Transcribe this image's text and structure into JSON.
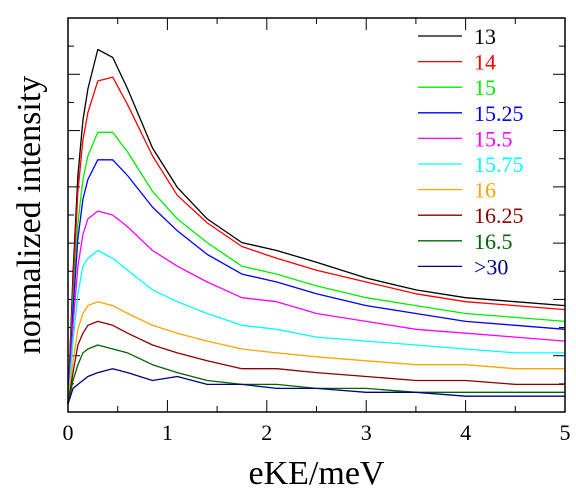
{
  "chart_data": {
    "type": "line",
    "xlabel": "eKE/meV",
    "ylabel": "normalized intensity",
    "xlim": [
      0,
      5
    ],
    "ylim": [
      0,
      100
    ],
    "x_ticks": [
      0,
      1,
      2,
      3,
      4,
      5
    ],
    "y_ticks_labeled": false,
    "grid": false,
    "legend_position": "top-right",
    "series": [
      {
        "name": "13",
        "color": "#000000",
        "x": [
          0.0,
          0.05,
          0.1,
          0.15,
          0.2,
          0.3,
          0.45,
          0.6,
          0.85,
          1.1,
          1.4,
          1.75,
          2.1,
          2.5,
          3.0,
          3.5,
          4.0,
          4.5,
          5.0
        ],
        "y": [
          2,
          35,
          60,
          74,
          82,
          92,
          90,
          82,
          67,
          57,
          49,
          43,
          41,
          38,
          34,
          31,
          29,
          28,
          27
        ]
      },
      {
        "name": "14",
        "color": "#ff0000",
        "x": [
          0.0,
          0.05,
          0.1,
          0.15,
          0.2,
          0.3,
          0.45,
          0.6,
          0.85,
          1.1,
          1.4,
          1.75,
          2.1,
          2.5,
          3.0,
          3.5,
          4.0,
          4.5,
          5.0
        ],
        "y": [
          2,
          32,
          56,
          69,
          76,
          84,
          85,
          78,
          65,
          55,
          48,
          42,
          39,
          36,
          33,
          30,
          28,
          27,
          26
        ]
      },
      {
        "name": "15",
        "color": "#00ee00",
        "x": [
          0.0,
          0.05,
          0.1,
          0.15,
          0.2,
          0.3,
          0.45,
          0.6,
          0.85,
          1.1,
          1.4,
          1.75,
          2.1,
          2.5,
          3.0,
          3.5,
          4.0,
          4.5,
          5.0
        ],
        "y": [
          2,
          28,
          48,
          59,
          65,
          71,
          71,
          66,
          56,
          49,
          43,
          37,
          35,
          32,
          29,
          27,
          25,
          24,
          23
        ]
      },
      {
        "name": "15.25",
        "color": "#0000ff",
        "x": [
          0.0,
          0.05,
          0.1,
          0.15,
          0.2,
          0.3,
          0.45,
          0.6,
          0.85,
          1.1,
          1.4,
          1.75,
          2.1,
          2.5,
          3.0,
          3.5,
          4.0,
          4.5,
          5.0
        ],
        "y": [
          2,
          26,
          44,
          54,
          59,
          64,
          64,
          60,
          52,
          46,
          40,
          35,
          33,
          30,
          27,
          25,
          23,
          22,
          21
        ]
      },
      {
        "name": "15.5",
        "color": "#ff00ff",
        "x": [
          0.0,
          0.05,
          0.1,
          0.15,
          0.2,
          0.3,
          0.45,
          0.6,
          0.85,
          1.1,
          1.4,
          1.75,
          2.1,
          2.5,
          3.0,
          3.5,
          4.0,
          4.5,
          5.0
        ],
        "y": [
          2,
          22,
          37,
          45,
          49,
          51,
          50,
          47,
          41,
          37,
          33,
          29,
          28,
          25,
          23,
          21,
          20,
          19,
          18
        ]
      },
      {
        "name": "15.75",
        "color": "#00ffff",
        "x": [
          0.0,
          0.05,
          0.1,
          0.15,
          0.2,
          0.3,
          0.45,
          0.6,
          0.85,
          1.1,
          1.4,
          1.75,
          2.1,
          2.5,
          3.0,
          3.5,
          4.0,
          4.5,
          5.0
        ],
        "y": [
          2,
          18,
          30,
          37,
          39,
          41,
          39,
          36,
          31,
          28,
          25,
          22,
          21,
          19,
          18,
          17,
          16,
          15,
          15
        ]
      },
      {
        "name": "16",
        "color": "#ffa500",
        "x": [
          0.0,
          0.05,
          0.1,
          0.15,
          0.2,
          0.3,
          0.45,
          0.6,
          0.85,
          1.1,
          1.4,
          1.75,
          2.1,
          2.5,
          3.0,
          3.5,
          4.0,
          4.5,
          5.0
        ],
        "y": [
          2,
          13,
          21,
          25,
          27,
          28,
          27,
          25,
          22,
          20,
          18,
          16,
          15,
          14,
          13,
          12,
          12,
          11,
          11
        ]
      },
      {
        "name": "16.25",
        "color": "#8b0000",
        "x": [
          0.0,
          0.05,
          0.1,
          0.15,
          0.2,
          0.3,
          0.45,
          0.6,
          0.85,
          1.1,
          1.4,
          1.75,
          2.1,
          2.5,
          3.0,
          3.5,
          4.0,
          4.5,
          5.0
        ],
        "y": [
          2,
          10,
          17,
          20,
          22,
          23,
          22,
          20,
          17,
          15,
          13,
          11,
          11,
          10,
          9,
          8,
          8,
          7,
          7
        ]
      },
      {
        "name": "16.5",
        "color": "#006400",
        "x": [
          0.0,
          0.05,
          0.1,
          0.15,
          0.2,
          0.3,
          0.45,
          0.6,
          0.85,
          1.1,
          1.4,
          1.75,
          2.1,
          2.5,
          3.0,
          3.5,
          4.0,
          4.5,
          5.0
        ],
        "y": [
          2,
          8,
          12,
          15,
          16,
          17,
          16,
          15,
          12,
          10,
          8,
          7,
          7,
          6,
          6,
          5,
          5,
          5,
          5
        ]
      },
      {
        "name": ">30",
        "color": "#000080",
        "x": [
          0.0,
          0.05,
          0.1,
          0.15,
          0.2,
          0.3,
          0.45,
          0.6,
          0.85,
          1.1,
          1.4,
          1.75,
          2.1,
          2.5,
          3.0,
          3.5,
          4.0,
          4.5,
          5.0
        ],
        "y": [
          2,
          6,
          7,
          8,
          9,
          10,
          11,
          10,
          8,
          9,
          7,
          7,
          6,
          6,
          5,
          5,
          4,
          4,
          4
        ]
      }
    ]
  }
}
